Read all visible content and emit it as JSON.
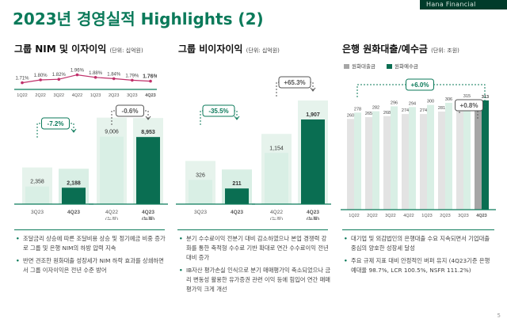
{
  "header": {
    "title": "2023년 경영실적 Highlights (2)",
    "brand": "Hana Financial",
    "page_number": "5"
  },
  "colors": {
    "accent": "#0b7a5a",
    "dark_green": "#0a6e52",
    "mid_green": "#5fb896",
    "light_green": "#d9efe5",
    "pale_green": "#c4e6d7",
    "gray": "#a6a6a6",
    "line_pink": "#c0306a"
  },
  "panels": {
    "nim": {
      "title": "그룹 NIM 및 이자이익",
      "unit": "(단위: 십억원)",
      "bullets": [
        "조달금리 상승에 따른 조달비용 상승 및 정기예금 비중 증가로 그룹 및 은행 NIM의 하방 압력 지속",
        "반면 견조한 원화대출 성장세가 NIM 하락 효과를 상쇄하면서 그룹 이자이익은 전년 수준 방어"
      ]
    },
    "nonint": {
      "title": "그룹 비이자이익",
      "unit": "(단위: 십억원)",
      "bullets": [
        "분기 수수료이익 전분기 대비 감소하였으나 본업 경쟁력 강화를 통한 축적형 수수료 기반 확대로 연간 수수료이익 전년대비 증가",
        "IB자산 평가손실 인식으로 분기 매매평가익 축소되었으나 금리 변동성 활용한 유가증권 관련 이익 등에 힘입어 연간 매매평가익 크게 개선"
      ]
    },
    "loans": {
      "title": "은행 원화대출/예수금",
      "unit": "(단위: 조원)",
      "bullets": [
        "대기업 및 외감법인의 은행대출 수요 지속되면서 기업대출 중심의 양호한 성장세 달성",
        "주요 규제 지표 대비 안정적인 버퍼 유지 (4Q23기준 은행 예대율 98.7%, LCR 100.5%, NSFR 111.2%)"
      ]
    }
  },
  "chart_data": [
    {
      "type": "line",
      "name": "NIM",
      "categories": [
        "1Q22",
        "2Q22",
        "3Q22",
        "4Q22",
        "1Q23",
        "2Q23",
        "3Q23",
        "4Q23"
      ],
      "values": [
        1.71,
        1.8,
        1.82,
        1.96,
        1.88,
        1.84,
        1.79,
        1.76
      ],
      "labels": [
        "1.71%",
        "1.80%",
        "1.82%",
        "1.96%",
        "1.88%",
        "1.84%",
        "1.79%",
        "1.76%"
      ],
      "ylim": [
        1.6,
        2.05
      ]
    },
    {
      "type": "bar",
      "name": "그룹 이자이익 (분기)",
      "categories": [
        "3Q23",
        "4Q23"
      ],
      "values": [
        2358,
        2188
      ],
      "value_labels": [
        "2,358",
        "2,188"
      ],
      "change": "-7.2%"
    },
    {
      "type": "bar",
      "name": "그룹 이자이익 (누적)",
      "categories": [
        "4Q22\n(누적)",
        "4Q23\n(누적)"
      ],
      "values": [
        9006,
        8953
      ],
      "value_labels": [
        "9,006",
        "8,953"
      ],
      "change": "-0.6%"
    },
    {
      "type": "bar",
      "name": "그룹 비이자이익 (분기)",
      "categories": [
        "3Q23",
        "4Q23"
      ],
      "values": [
        326,
        211
      ],
      "value_labels": [
        "326",
        "211"
      ],
      "change": "-35.5%"
    },
    {
      "type": "bar",
      "name": "그룹 비이자이익 (누적)",
      "categories": [
        "4Q22\n(누적)",
        "4Q23\n(누적)"
      ],
      "values": [
        1154,
        1907
      ],
      "value_labels": [
        "1,154",
        "1,907"
      ],
      "change": "+65.3%"
    },
    {
      "type": "bar",
      "categories": [
        "1Q22",
        "2Q22",
        "3Q22",
        "4Q22",
        "1Q23",
        "2Q23",
        "3Q23",
        "4Q23"
      ],
      "series": [
        {
          "name": "원화대출금",
          "values": [
            260,
            265,
            268,
            274,
            274,
            281,
            288,
            290
          ]
        },
        {
          "name": "원화예수금",
          "values": [
            278,
            282,
            296,
            294,
            300,
            306,
            315,
            313
          ]
        }
      ],
      "change_deposits": "+6.0%",
      "change_loans": "+0.8%",
      "legend": "top-left",
      "ylim": [
        0,
        340
      ]
    }
  ]
}
